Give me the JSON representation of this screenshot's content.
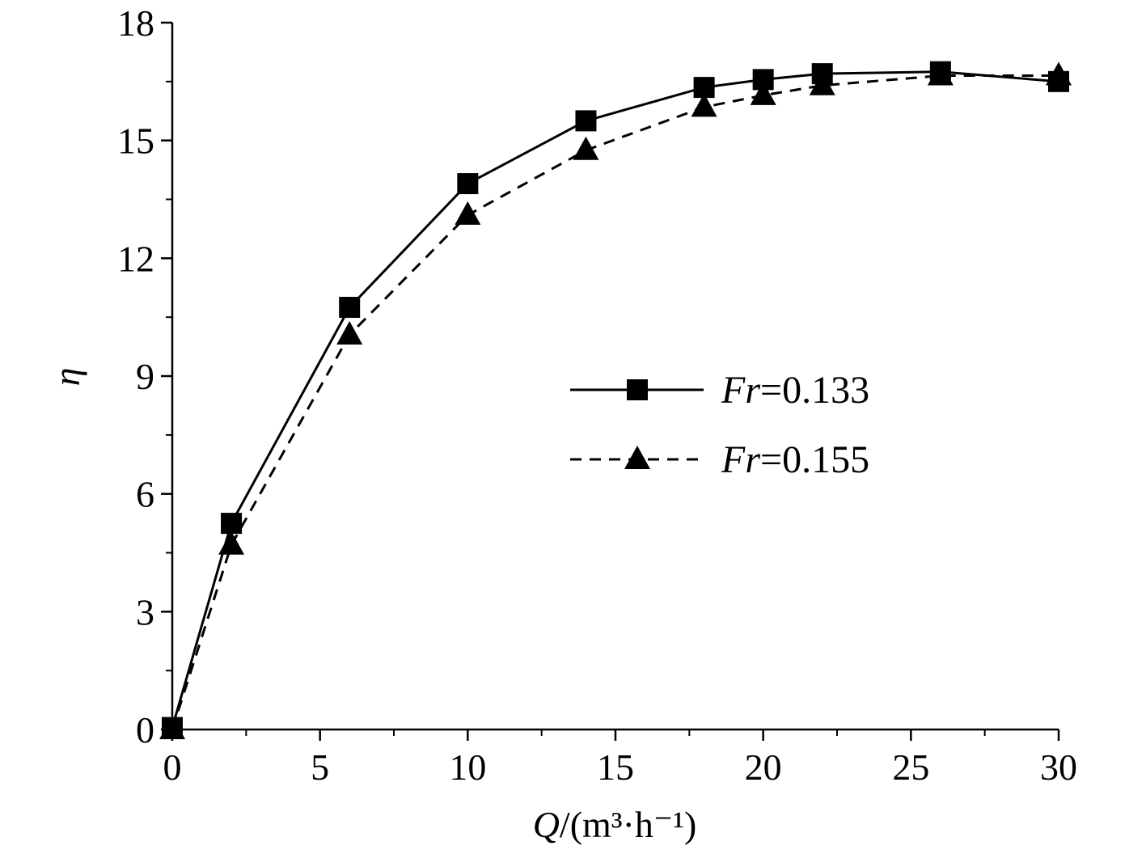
{
  "chart_data": {
    "type": "line",
    "title": "",
    "xlabel": {
      "var": "Q",
      "unit": "/(m³·h⁻¹)"
    },
    "ylabel": "η",
    "xlim": [
      0,
      30
    ],
    "ylim": [
      0,
      18
    ],
    "xticks": [
      0,
      5,
      10,
      15,
      20,
      25,
      30
    ],
    "yticks": [
      0,
      3,
      6,
      9,
      12,
      15,
      18
    ],
    "grid": false,
    "legend_position": "right-center",
    "series": [
      {
        "name": "Fr=0.133",
        "name_var": "Fr",
        "name_value": "=0.133",
        "marker": "square",
        "line": "solid",
        "color": "#000000",
        "x": [
          0,
          2,
          6,
          10,
          14,
          18,
          20,
          22,
          26,
          30
        ],
        "y": [
          0.05,
          5.25,
          10.75,
          13.9,
          15.5,
          16.35,
          16.55,
          16.7,
          16.75,
          16.5
        ]
      },
      {
        "name": "Fr=0.155",
        "name_var": "Fr",
        "name_value": "=0.155",
        "marker": "triangle",
        "line": "dashed",
        "color": "#000000",
        "x": [
          0,
          2,
          6,
          10,
          14,
          18,
          20,
          22,
          26,
          30
        ],
        "y": [
          0.0,
          4.7,
          10.05,
          13.1,
          14.75,
          15.85,
          16.15,
          16.4,
          16.65,
          16.65
        ]
      }
    ]
  }
}
